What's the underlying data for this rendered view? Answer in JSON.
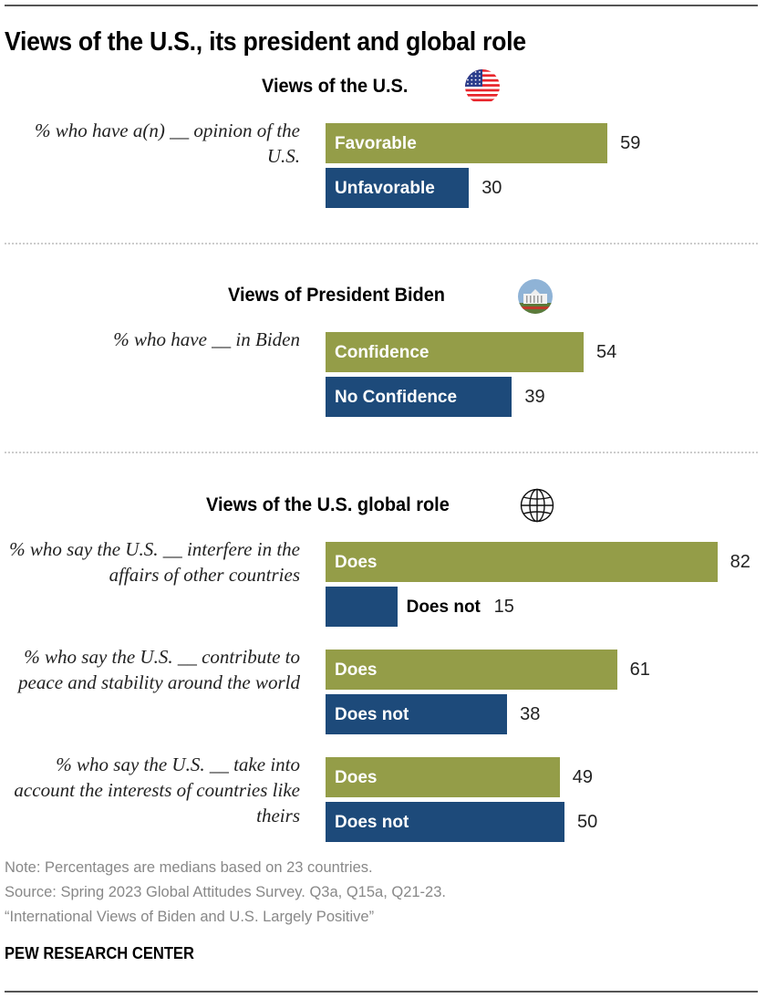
{
  "title": "Views of the U.S., its president and global role",
  "colors": {
    "positive": "#949d48",
    "negative": "#1d4a7a"
  },
  "chart_data": {
    "type": "bar",
    "orientation": "horizontal",
    "xlim": [
      0,
      100
    ],
    "grid": false,
    "sections": [
      {
        "title": "Views of the U.S.",
        "icon": "us-flag-icon",
        "groups": [
          {
            "label": "% who have a(n) __ opinion of the U.S.",
            "bars": [
              {
                "name": "Favorable",
                "value": 59,
                "tone": "positive"
              },
              {
                "name": "Unfavorable",
                "value": 30,
                "tone": "negative"
              }
            ]
          }
        ]
      },
      {
        "title": "Views of President Biden",
        "icon": "white-house-icon",
        "groups": [
          {
            "label": "% who have __ in Biden",
            "bars": [
              {
                "name": "Confidence",
                "value": 54,
                "tone": "positive"
              },
              {
                "name": "No Confidence",
                "value": 39,
                "tone": "negative"
              }
            ]
          }
        ]
      },
      {
        "title": "Views of the U.S. global role",
        "icon": "globe-icon",
        "groups": [
          {
            "label": "% who say the U.S. __ interfere in the affairs of other countries",
            "bars": [
              {
                "name": "Does",
                "value": 82,
                "tone": "positive"
              },
              {
                "name": "Does not",
                "value": 15,
                "tone": "negative"
              }
            ]
          },
          {
            "label": "% who say the U.S. __ contribute to peace and stability around the world",
            "bars": [
              {
                "name": "Does",
                "value": 61,
                "tone": "positive"
              },
              {
                "name": "Does not",
                "value": 38,
                "tone": "negative"
              }
            ]
          },
          {
            "label": "% who say the U.S. __ take into account the interests of countries like theirs",
            "bars": [
              {
                "name": "Does",
                "value": 49,
                "tone": "positive"
              },
              {
                "name": "Does not",
                "value": 50,
                "tone": "negative"
              }
            ]
          }
        ]
      }
    ]
  },
  "footer": {
    "note": "Note: Percentages are medians based on 23 countries.",
    "source": "Source: Spring 2023 Global Attitudes Survey. Q3a, Q15a, Q21-23.",
    "report": "“International Views of Biden and U.S. Largely Positive”",
    "brand": "PEW RESEARCH CENTER"
  }
}
